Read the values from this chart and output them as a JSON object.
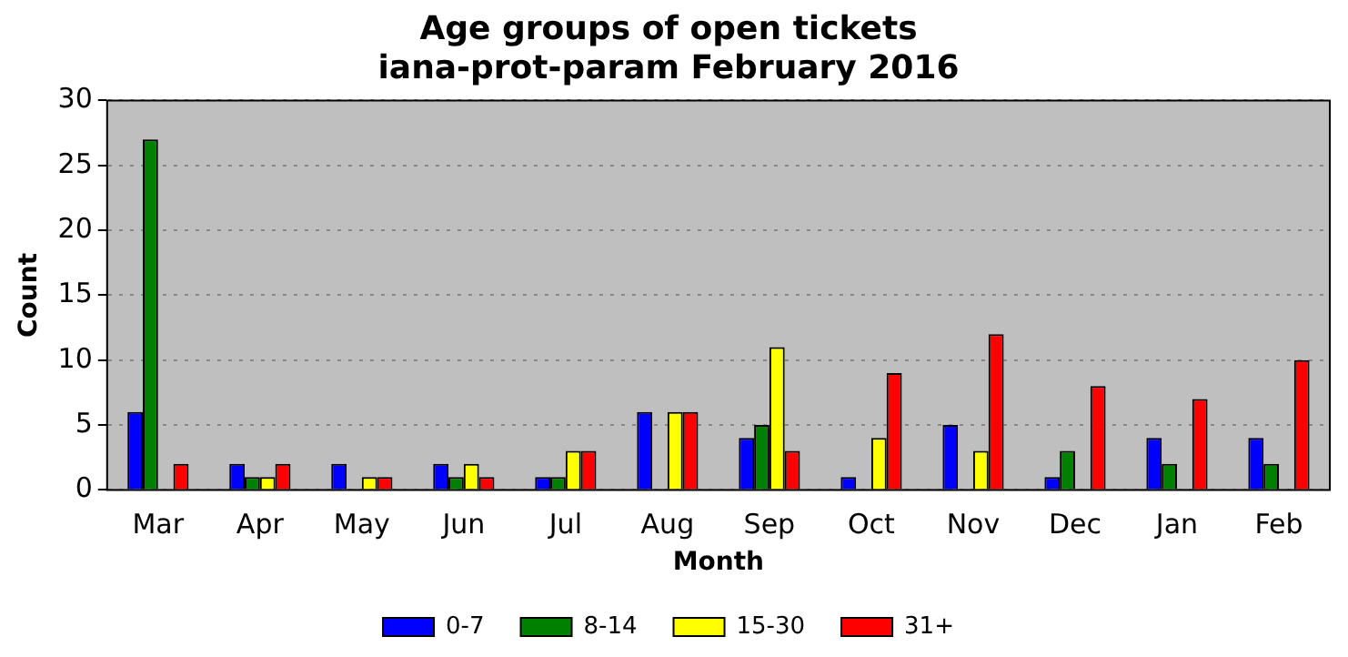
{
  "chart_data": {
    "type": "bar",
    "title": "Age groups of open tickets",
    "subtitle": "iana-prot-param February 2016",
    "xlabel": "Month",
    "ylabel": "Count",
    "categories": [
      "Mar",
      "Apr",
      "May",
      "Jun",
      "Jul",
      "Aug",
      "Sep",
      "Oct",
      "Nov",
      "Dec",
      "Jan",
      "Feb"
    ],
    "series": [
      {
        "name": "0-7",
        "color": "#0000ff",
        "values": [
          6,
          2,
          2,
          2,
          1,
          6,
          4,
          1,
          5,
          1,
          4,
          4
        ]
      },
      {
        "name": "8-14",
        "color": "#008000",
        "values": [
          27,
          1,
          0,
          1,
          1,
          0,
          5,
          0,
          0,
          3,
          2,
          2
        ]
      },
      {
        "name": "15-30",
        "color": "#ffff00",
        "values": [
          0,
          1,
          1,
          2,
          3,
          6,
          11,
          4,
          3,
          0,
          0,
          0
        ]
      },
      {
        "name": "31+",
        "color": "#ff0000",
        "values": [
          2,
          2,
          1,
          1,
          3,
          6,
          3,
          9,
          12,
          8,
          7,
          10
        ]
      }
    ],
    "ylim": [
      0,
      30
    ],
    "yticks": [
      0,
      5,
      10,
      15,
      20,
      25,
      30
    ],
    "grid": "y",
    "legend": "bottom"
  }
}
